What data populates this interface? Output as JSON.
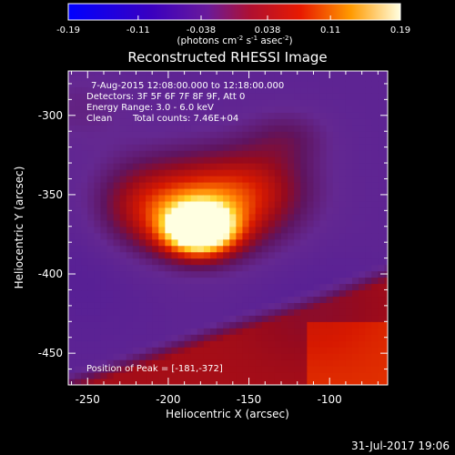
{
  "chart_data": {
    "type": "heatmap",
    "title": "Reconstructed RHESSI Image",
    "xlabel": "Heliocentric X (arcsec)",
    "ylabel": "Heliocentric Y (arcsec)",
    "xlim": [
      -262,
      -64
    ],
    "ylim": [
      -470,
      -272
    ],
    "x_ticks": [
      "-250",
      "-200",
      "-150",
      "-100"
    ],
    "x_tick_values": [
      -250,
      -200,
      -150,
      -100
    ],
    "y_ticks": [
      "-300",
      "-350",
      "-400",
      "-450"
    ],
    "y_tick_values": [
      -300,
      -350,
      -400,
      -450
    ],
    "colorbar": {
      "ticks": [
        "-0.19",
        "-0.11",
        "-0.038",
        "0.038",
        "0.11",
        "0.19"
      ],
      "tick_values": [
        -0.19,
        -0.11,
        -0.038,
        0.038,
        0.11,
        0.19
      ],
      "range": [
        -0.19,
        0.19
      ],
      "units_prefix": "(photons cm",
      "units_exp1": "-2",
      "units_mid": " s",
      "units_exp2": "-1",
      "units_mid2": " asec",
      "units_exp3": "-2",
      "units_suffix": ")"
    },
    "annotations": {
      "time_range": "7-Aug-2015 12:08:00.000 to 12:18:00.000",
      "detectors": "Detectors: 3F 5F 6F 7F 8F 9F, Att 0",
      "energy": "Energy Range: 3.0 - 6.0 keV",
      "clean_label": "Clean",
      "total_counts": "Total counts: 7.46E+04",
      "peak": "Position of Peak = [-181,-372]"
    },
    "peak": {
      "x": -181,
      "y": -372
    },
    "footer_date": "31-Jul-2017 19:06"
  }
}
